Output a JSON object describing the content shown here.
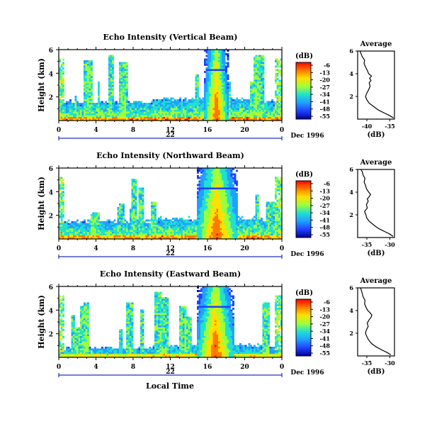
{
  "figure": {
    "xlabel": "Local Time",
    "date_label": "Dec 1996",
    "height_label": "Height (km)",
    "colorbar_unit": "(dB)",
    "avg_title": "Average",
    "avg_xlabel": "(dB)"
  },
  "colorbar": {
    "ticks": [
      "-6",
      "-13",
      "-20",
      "-27",
      "-34",
      "-41",
      "-48",
      "-55"
    ],
    "colors": [
      "#ff0000",
      "#ff7a00",
      "#ffe000",
      "#9cff3c",
      "#20e0d0",
      "#20a0ff",
      "#2040ff",
      "#000090"
    ]
  },
  "chart_data": [
    {
      "type": "heatmap",
      "title": "Echo Intensity (Vertical Beam)",
      "ylabel": "Height (km)",
      "y_ticks": [
        "6",
        "4",
        "2"
      ],
      "x_ticks": [
        "0",
        "4",
        "8",
        "12",
        "16",
        "20",
        "0"
      ],
      "day_label": "22",
      "x": [
        0,
        4,
        8,
        12,
        16,
        20,
        24
      ],
      "ylim": [
        0,
        6
      ],
      "zlim": [
        -55,
        -6
      ],
      "z_unit": "dB",
      "features": {
        "main_column_hours": [
          15.7,
          18.2
        ],
        "boundary_layer_top_km": 1.6,
        "column_peak_db": -6
      }
    },
    {
      "type": "heatmap",
      "title": "Echo Intensity (Northward Beam)",
      "ylabel": "Height (km)",
      "y_ticks": [
        "6",
        "4",
        "2"
      ],
      "x_ticks": [
        "0",
        "4",
        "8",
        "12",
        "16",
        "20",
        "0"
      ],
      "day_label": "22",
      "x": [
        0,
        4,
        8,
        12,
        16,
        20,
        24
      ],
      "ylim": [
        0,
        6
      ],
      "zlim": [
        -55,
        -6
      ],
      "z_unit": "dB",
      "features": {
        "main_column_hours": [
          14.8,
          19.2
        ],
        "boundary_layer_top_km": 1.5,
        "column_peak_db": -6
      }
    },
    {
      "type": "heatmap",
      "title": "Echo Intensity (Eastward Beam)",
      "ylabel": "Height (km)",
      "y_ticks": [
        "6",
        "4",
        "2"
      ],
      "x_ticks": [
        "0",
        "4",
        "8",
        "12",
        "16",
        "20",
        "0"
      ],
      "day_label": "22",
      "x": [
        0,
        4,
        8,
        12,
        16,
        20,
        24
      ],
      "ylim": [
        0,
        6
      ],
      "zlim": [
        -55,
        -6
      ],
      "z_unit": "dB",
      "features": {
        "main_column_hours": [
          14.9,
          18.8
        ],
        "boundary_layer_top_km": 0.8,
        "column_peak_db": -6
      }
    },
    {
      "type": "line",
      "title": "Average",
      "xlabel": "(dB)",
      "x_ticks": [
        "-40",
        "-35"
      ],
      "y_ticks": [
        "6",
        "4",
        "2"
      ],
      "xlim": [
        -42,
        -34
      ],
      "ylim": [
        0,
        6
      ],
      "series": [
        {
          "x": [
            -34.2,
            -35,
            -36,
            -37.5,
            -38.5,
            -39.5,
            -40,
            -40.3,
            -40,
            -39.6,
            -39.3,
            -39.5,
            -39.1,
            -39.4,
            -39.0,
            -39.6,
            -39.9,
            -40.3,
            -40.6,
            -40.5,
            -41.0,
            -41.3,
            -41.5
          ],
          "y": [
            0.1,
            0.3,
            0.5,
            0.8,
            1.1,
            1.4,
            1.7,
            2.0,
            2.3,
            2.6,
            2.9,
            3.2,
            3.4,
            3.6,
            3.8,
            4.0,
            4.3,
            4.6,
            4.9,
            5.2,
            5.5,
            5.8,
            6.0
          ]
        }
      ]
    },
    {
      "type": "line",
      "title": "Average",
      "xlabel": "(dB)",
      "x_ticks": [
        "-35",
        "-30"
      ],
      "y_ticks": [
        "6",
        "4",
        "2"
      ],
      "xlim": [
        -37,
        -29
      ],
      "ylim": [
        0,
        6
      ],
      "series": [
        {
          "x": [
            -29.3,
            -30,
            -31,
            -32.5,
            -33.5,
            -34.4,
            -35,
            -35.2,
            -35.5,
            -34.9,
            -35.1,
            -34.7,
            -34.9,
            -34.5,
            -34.2,
            -34.6,
            -35.1,
            -35.3,
            -35.6,
            -35.4,
            -35.8,
            -36.0,
            -36.3
          ],
          "y": [
            0.1,
            0.3,
            0.5,
            0.8,
            1.1,
            1.4,
            1.7,
            2.0,
            2.3,
            2.6,
            2.9,
            3.2,
            3.4,
            3.6,
            3.8,
            4.0,
            4.3,
            4.6,
            4.9,
            5.2,
            5.5,
            5.8,
            6.0
          ]
        }
      ]
    },
    {
      "type": "line",
      "title": "Average",
      "xlabel": "(dB)",
      "x_ticks": [
        "-35",
        "-30"
      ],
      "y_ticks": [
        "6",
        "4",
        "2"
      ],
      "xlim": [
        -37,
        -29
      ],
      "ylim": [
        0,
        6
      ],
      "series": [
        {
          "x": [
            -29.8,
            -30.6,
            -31.6,
            -33,
            -34,
            -34.6,
            -35,
            -35.3,
            -35.1,
            -34.7,
            -34.9,
            -34.5,
            -34.1,
            -33.9,
            -34.3,
            -34.8,
            -35.2,
            -35.5,
            -35.4,
            -35.8,
            -36.0,
            -36.2,
            -36.4
          ],
          "y": [
            0.1,
            0.3,
            0.5,
            0.8,
            1.1,
            1.4,
            1.7,
            2.0,
            2.3,
            2.6,
            2.9,
            3.2,
            3.4,
            3.6,
            3.8,
            4.0,
            4.3,
            4.6,
            4.9,
            5.2,
            5.5,
            5.8,
            6.0
          ]
        }
      ]
    }
  ]
}
